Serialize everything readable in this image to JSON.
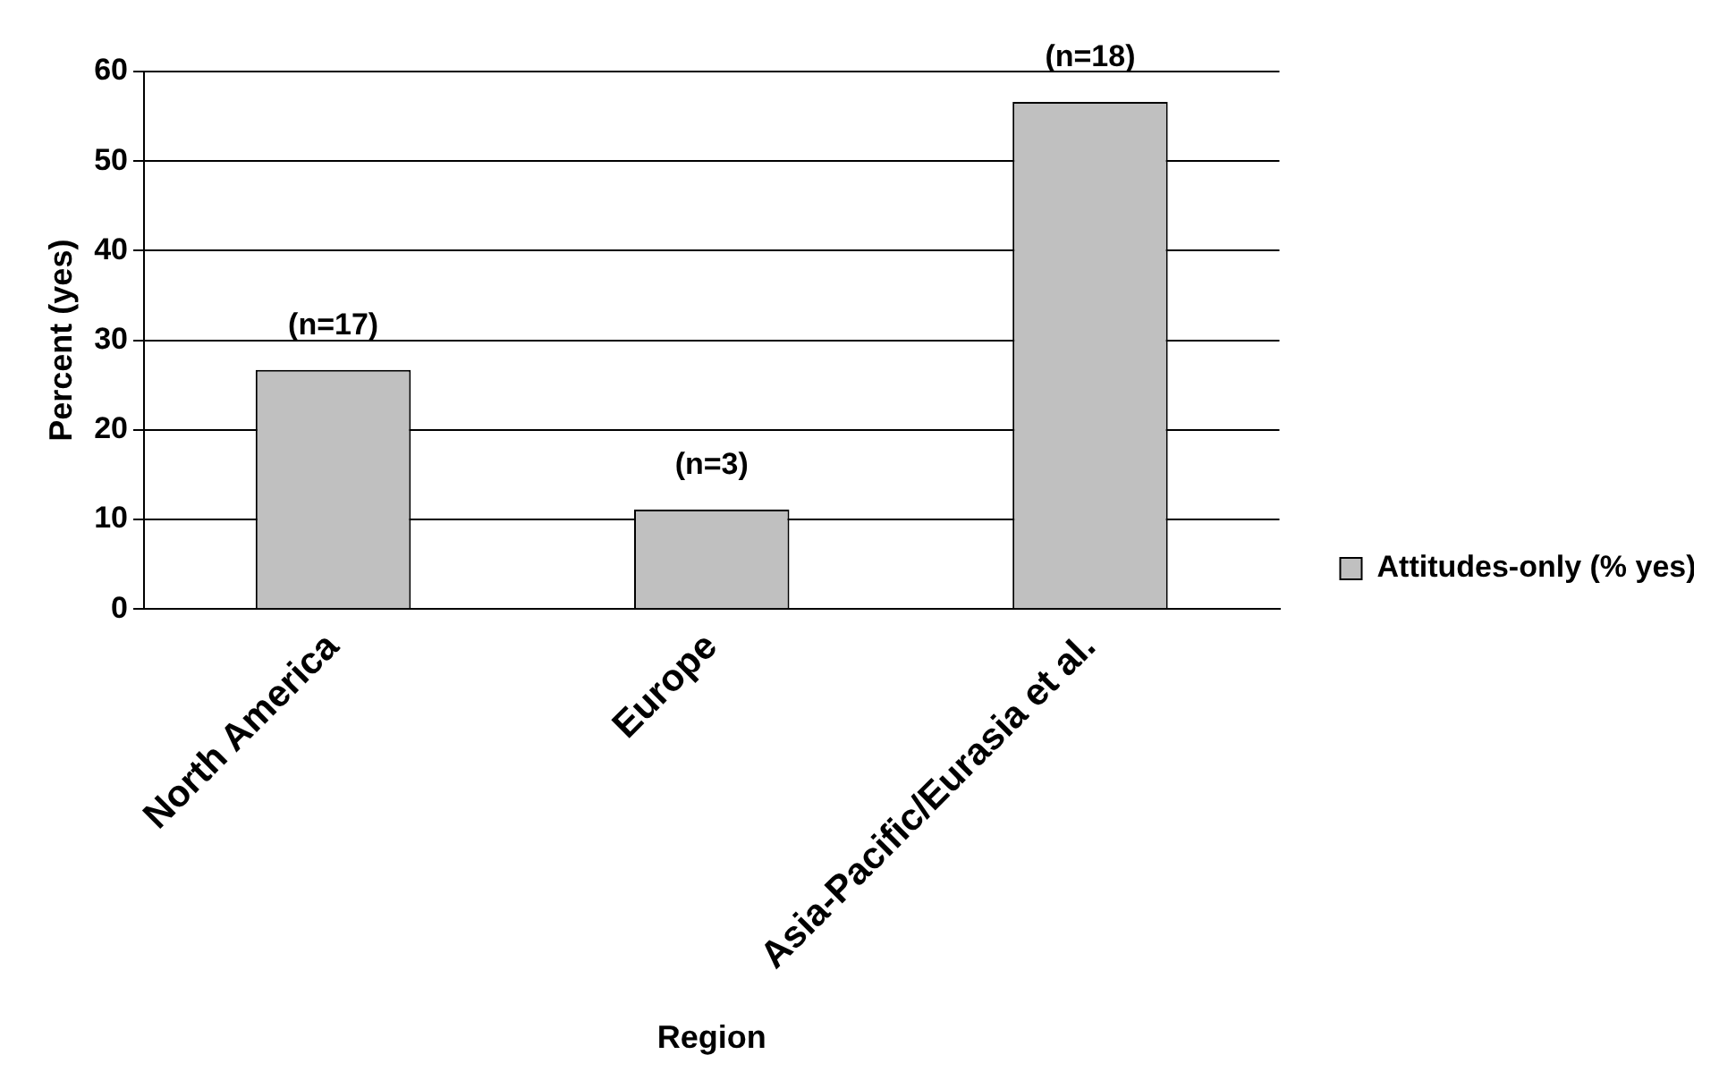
{
  "chart_data": {
    "type": "bar",
    "xlabel": "Region",
    "ylabel": "Percent (yes)",
    "categories": [
      "North America",
      "Europe",
      "Asia-Pacific/Eurasia et al."
    ],
    "series": [
      {
        "name": "Attitudes-only (% yes)",
        "color": "#c0c0c0",
        "values": [
          26.7,
          11.1,
          56.6
        ]
      }
    ],
    "ylim": [
      0,
      60
    ],
    "yticks": [
      0,
      10,
      20,
      30,
      40,
      50,
      60
    ],
    "grid": "y",
    "legend": "right",
    "annotations": [
      {
        "text": "(n=17)",
        "x": "North America",
        "y": 26.7
      },
      {
        "text": "(n=3)",
        "x": "Europe",
        "y": 11.1
      },
      {
        "text": "(n=18)",
        "x": "Asia-Pacific/Eurasia et al.",
        "y": 56.6
      }
    ]
  }
}
